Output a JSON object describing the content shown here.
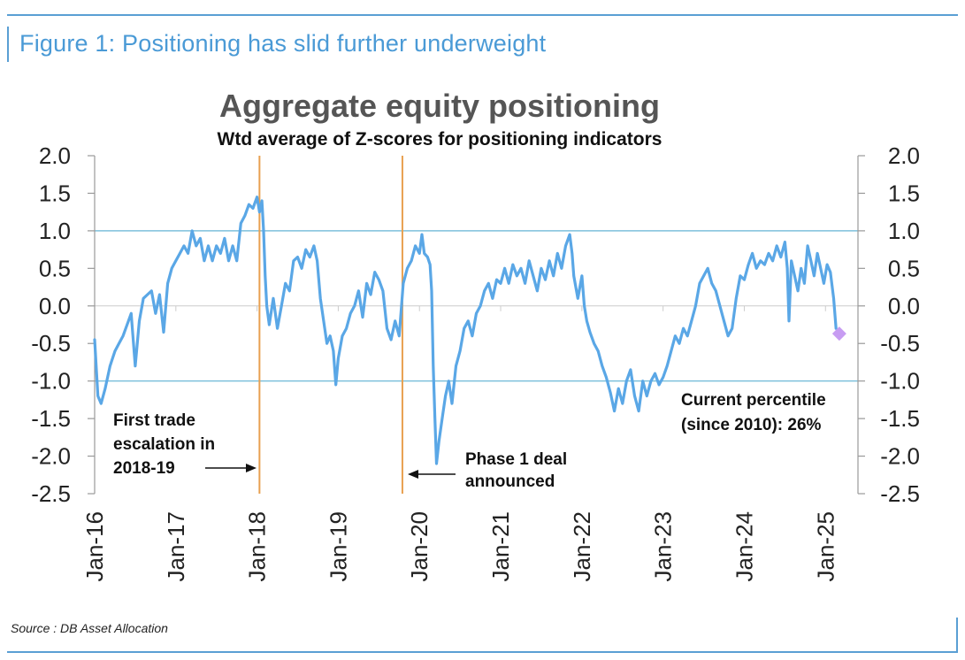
{
  "figure": {
    "title": "Figure 1: Positioning has slid further underweight",
    "source": "Source : DB Asset Allocation"
  },
  "colors": {
    "line": "#5aa7e6",
    "event_line": "#e8a050",
    "reference_line": "#7ec0dc",
    "current_marker": "#c79cf2",
    "axis": "#999999",
    "text": "#222222"
  },
  "chart_data": {
    "type": "line",
    "title": "Aggregate equity positioning",
    "subtitle": "Wtd average of Z-scores for positioning indicators",
    "xlabel": "",
    "ylabel": "",
    "ylim": [
      -2.5,
      2.0
    ],
    "yticks": [
      2.0,
      1.5,
      1.0,
      0.5,
      0.0,
      -0.5,
      -1.0,
      -1.5,
      -2.0,
      -2.5
    ],
    "ytick_labels": [
      "2.0",
      "1.5",
      "1.0",
      "0.5",
      "0.0",
      "-0.5",
      "-1.0",
      "-1.5",
      "-2.0",
      "-2.5"
    ],
    "xlim": [
      2016.0,
      2025.4
    ],
    "xticks": [
      2016,
      2017,
      2018,
      2019,
      2020,
      2021,
      2022,
      2023,
      2024,
      2025
    ],
    "xtick_labels": [
      "Jan-16",
      "Jan-17",
      "Jan-18",
      "Jan-19",
      "Jan-20",
      "Jan-21",
      "Jan-22",
      "Jan-23",
      "Jan-24",
      "Jan-25"
    ],
    "reference_lines": [
      1.0,
      -1.0
    ],
    "series": [
      {
        "name": "Aggregate equity positioning",
        "points": [
          [
            2016.0,
            -0.45
          ],
          [
            2016.04,
            -1.2
          ],
          [
            2016.08,
            -1.3
          ],
          [
            2016.13,
            -1.1
          ],
          [
            2016.19,
            -0.8
          ],
          [
            2016.25,
            -0.6
          ],
          [
            2016.3,
            -0.5
          ],
          [
            2016.35,
            -0.4
          ],
          [
            2016.4,
            -0.25
          ],
          [
            2016.45,
            -0.1
          ],
          [
            2016.5,
            -0.8
          ],
          [
            2016.55,
            -0.2
          ],
          [
            2016.6,
            0.1
          ],
          [
            2016.65,
            0.15
          ],
          [
            2016.7,
            0.2
          ],
          [
            2016.75,
            -0.1
          ],
          [
            2016.8,
            0.15
          ],
          [
            2016.85,
            -0.35
          ],
          [
            2016.9,
            0.3
          ],
          [
            2016.95,
            0.5
          ],
          [
            2017.0,
            0.6
          ],
          [
            2017.05,
            0.7
          ],
          [
            2017.1,
            0.8
          ],
          [
            2017.15,
            0.7
          ],
          [
            2017.2,
            1.0
          ],
          [
            2017.25,
            0.8
          ],
          [
            2017.3,
            0.9
          ],
          [
            2017.35,
            0.6
          ],
          [
            2017.4,
            0.8
          ],
          [
            2017.45,
            0.6
          ],
          [
            2017.5,
            0.8
          ],
          [
            2017.55,
            0.7
          ],
          [
            2017.6,
            0.9
          ],
          [
            2017.65,
            0.6
          ],
          [
            2017.7,
            0.8
          ],
          [
            2017.75,
            0.6
          ],
          [
            2017.8,
            1.1
          ],
          [
            2017.85,
            1.2
          ],
          [
            2017.9,
            1.35
          ],
          [
            2017.95,
            1.3
          ],
          [
            2018.0,
            1.45
          ],
          [
            2018.03,
            1.25
          ],
          [
            2018.06,
            1.4
          ],
          [
            2018.08,
            1.0
          ],
          [
            2018.1,
            0.4
          ],
          [
            2018.12,
            0.0
          ],
          [
            2018.15,
            -0.25
          ],
          [
            2018.2,
            0.1
          ],
          [
            2018.25,
            -0.3
          ],
          [
            2018.3,
            0.0
          ],
          [
            2018.35,
            0.3
          ],
          [
            2018.4,
            0.2
          ],
          [
            2018.45,
            0.6
          ],
          [
            2018.5,
            0.65
          ],
          [
            2018.55,
            0.5
          ],
          [
            2018.6,
            0.75
          ],
          [
            2018.65,
            0.65
          ],
          [
            2018.7,
            0.8
          ],
          [
            2018.74,
            0.6
          ],
          [
            2018.78,
            0.1
          ],
          [
            2018.82,
            -0.2
          ],
          [
            2018.86,
            -0.5
          ],
          [
            2018.9,
            -0.4
          ],
          [
            2018.94,
            -0.6
          ],
          [
            2018.97,
            -1.05
          ],
          [
            2019.0,
            -0.7
          ],
          [
            2019.05,
            -0.4
          ],
          [
            2019.1,
            -0.3
          ],
          [
            2019.15,
            -0.1
          ],
          [
            2019.2,
            0.0
          ],
          [
            2019.25,
            0.2
          ],
          [
            2019.3,
            -0.15
          ],
          [
            2019.35,
            0.3
          ],
          [
            2019.4,
            0.15
          ],
          [
            2019.45,
            0.45
          ],
          [
            2019.5,
            0.35
          ],
          [
            2019.55,
            0.2
          ],
          [
            2019.6,
            -0.3
          ],
          [
            2019.65,
            -0.45
          ],
          [
            2019.7,
            -0.2
          ],
          [
            2019.75,
            -0.4
          ],
          [
            2019.8,
            0.3
          ],
          [
            2019.85,
            0.5
          ],
          [
            2019.9,
            0.6
          ],
          [
            2019.95,
            0.8
          ],
          [
            2020.0,
            0.7
          ],
          [
            2020.03,
            0.95
          ],
          [
            2020.06,
            0.7
          ],
          [
            2020.1,
            0.65
          ],
          [
            2020.13,
            0.55
          ],
          [
            2020.15,
            0.2
          ],
          [
            2020.17,
            -0.8
          ],
          [
            2020.19,
            -1.5
          ],
          [
            2020.21,
            -2.1
          ],
          [
            2020.24,
            -1.8
          ],
          [
            2020.28,
            -1.5
          ],
          [
            2020.32,
            -1.2
          ],
          [
            2020.36,
            -1.0
          ],
          [
            2020.4,
            -1.3
          ],
          [
            2020.45,
            -0.8
          ],
          [
            2020.5,
            -0.6
          ],
          [
            2020.55,
            -0.3
          ],
          [
            2020.6,
            -0.2
          ],
          [
            2020.65,
            -0.4
          ],
          [
            2020.7,
            -0.1
          ],
          [
            2020.75,
            0.0
          ],
          [
            2020.8,
            0.2
          ],
          [
            2020.85,
            0.3
          ],
          [
            2020.9,
            0.1
          ],
          [
            2020.95,
            0.35
          ],
          [
            2021.0,
            0.3
          ],
          [
            2021.05,
            0.5
          ],
          [
            2021.1,
            0.3
          ],
          [
            2021.15,
            0.55
          ],
          [
            2021.2,
            0.4
          ],
          [
            2021.25,
            0.5
          ],
          [
            2021.3,
            0.3
          ],
          [
            2021.35,
            0.6
          ],
          [
            2021.4,
            0.4
          ],
          [
            2021.45,
            0.2
          ],
          [
            2021.5,
            0.5
          ],
          [
            2021.55,
            0.35
          ],
          [
            2021.6,
            0.6
          ],
          [
            2021.65,
            0.4
          ],
          [
            2021.7,
            0.7
          ],
          [
            2021.75,
            0.5
          ],
          [
            2021.8,
            0.8
          ],
          [
            2021.85,
            0.95
          ],
          [
            2021.88,
            0.7
          ],
          [
            2021.9,
            0.4
          ],
          [
            2021.95,
            0.1
          ],
          [
            2022.0,
            0.4
          ],
          [
            2022.03,
            0.0
          ],
          [
            2022.06,
            -0.2
          ],
          [
            2022.1,
            -0.35
          ],
          [
            2022.15,
            -0.5
          ],
          [
            2022.2,
            -0.6
          ],
          [
            2022.25,
            -0.8
          ],
          [
            2022.3,
            -0.95
          ],
          [
            2022.35,
            -1.15
          ],
          [
            2022.4,
            -1.4
          ],
          [
            2022.45,
            -1.1
          ],
          [
            2022.5,
            -1.3
          ],
          [
            2022.55,
            -1.0
          ],
          [
            2022.6,
            -0.85
          ],
          [
            2022.65,
            -1.2
          ],
          [
            2022.7,
            -1.4
          ],
          [
            2022.75,
            -1.0
          ],
          [
            2022.8,
            -1.2
          ],
          [
            2022.85,
            -1.0
          ],
          [
            2022.9,
            -0.9
          ],
          [
            2022.95,
            -1.05
          ],
          [
            2023.0,
            -0.95
          ],
          [
            2023.05,
            -0.8
          ],
          [
            2023.1,
            -0.6
          ],
          [
            2023.15,
            -0.4
          ],
          [
            2023.2,
            -0.5
          ],
          [
            2023.25,
            -0.3
          ],
          [
            2023.3,
            -0.4
          ],
          [
            2023.35,
            -0.2
          ],
          [
            2023.4,
            0.0
          ],
          [
            2023.45,
            0.3
          ],
          [
            2023.5,
            0.4
          ],
          [
            2023.55,
            0.5
          ],
          [
            2023.6,
            0.3
          ],
          [
            2023.65,
            0.2
          ],
          [
            2023.7,
            0.0
          ],
          [
            2023.75,
            -0.2
          ],
          [
            2023.8,
            -0.4
          ],
          [
            2023.85,
            -0.3
          ],
          [
            2023.9,
            0.1
          ],
          [
            2023.95,
            0.4
          ],
          [
            2024.0,
            0.35
          ],
          [
            2024.05,
            0.55
          ],
          [
            2024.1,
            0.7
          ],
          [
            2024.15,
            0.5
          ],
          [
            2024.2,
            0.6
          ],
          [
            2024.25,
            0.55
          ],
          [
            2024.3,
            0.7
          ],
          [
            2024.35,
            0.6
          ],
          [
            2024.4,
            0.8
          ],
          [
            2024.45,
            0.65
          ],
          [
            2024.5,
            0.85
          ],
          [
            2024.53,
            0.5
          ],
          [
            2024.55,
            -0.2
          ],
          [
            2024.58,
            0.6
          ],
          [
            2024.62,
            0.4
          ],
          [
            2024.66,
            0.2
          ],
          [
            2024.7,
            0.5
          ],
          [
            2024.74,
            0.3
          ],
          [
            2024.78,
            0.8
          ],
          [
            2024.82,
            0.6
          ],
          [
            2024.86,
            0.4
          ],
          [
            2024.9,
            0.7
          ],
          [
            2024.94,
            0.5
          ],
          [
            2024.98,
            0.3
          ],
          [
            2025.02,
            0.55
          ],
          [
            2025.06,
            0.45
          ],
          [
            2025.1,
            0.1
          ],
          [
            2025.13,
            -0.3
          ]
        ]
      }
    ],
    "current_point": {
      "x": 2025.17,
      "y": -0.37
    },
    "event_lines": [
      2018.03,
      2019.79
    ],
    "annotations": [
      {
        "lines": [
          "First trade",
          "escalation in",
          "2018-19"
        ],
        "arrow": "right"
      },
      {
        "lines": [
          "Phase 1 deal",
          "announced"
        ],
        "arrow": "left"
      },
      {
        "lines": [
          "Current percentile",
          "(since 2010): 26%"
        ],
        "arrow": "none"
      }
    ]
  }
}
